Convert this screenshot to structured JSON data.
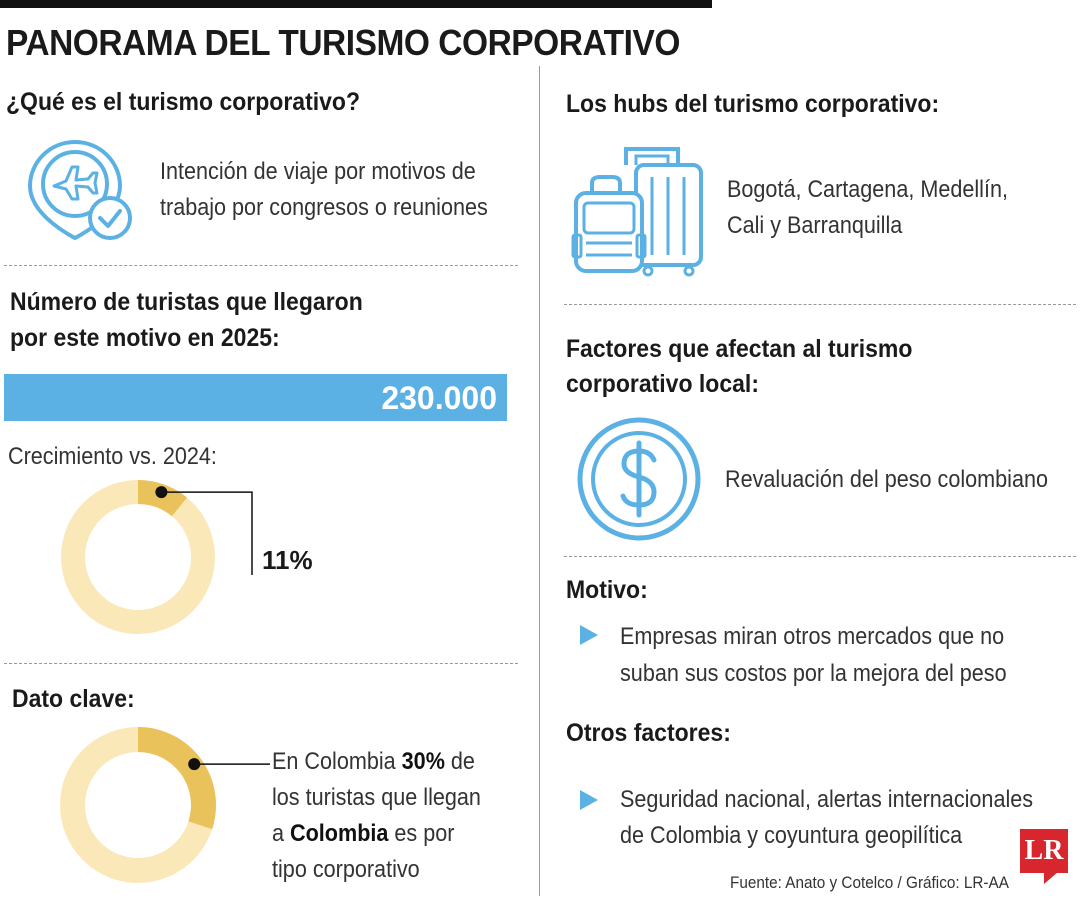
{
  "title": "PANORAMA DEL TURISMO CORPORATIVO",
  "que_es": {
    "heading": "¿Qué es el turismo corporativo?",
    "line1": "Intención de viaje por motivos de",
    "line2": "trabajo por congresos o reuniones",
    "icon": "airplane-location-check-icon"
  },
  "turistas": {
    "heading_line1": "Número de turistas que llegaron",
    "heading_line2": "por este motivo en 2025:",
    "bar_label": "230.000",
    "growth_label": "Crecimiento vs. 2024:"
  },
  "dato_clave": {
    "heading": "Dato clave:",
    "line1_pre": "En Colombia ",
    "line1_bold": "30%",
    "line1_post": " de",
    "line2": "los turistas que llegan",
    "line3_pre": "a ",
    "line3_bold": "Colombia",
    "line3_post": " es por",
    "line4": "tipo corporativo"
  },
  "hubs": {
    "heading": "Los hubs del turismo corporativo:",
    "line1": "Bogotá, Cartagena, Medellín,",
    "line2": "Cali y Barranquilla",
    "icon": "luggage-icon"
  },
  "factores": {
    "heading_line1": "Factores que afectan al turismo",
    "heading_line2": "corporativo local:",
    "text": "Revaluación del peso colombiano",
    "icon": "dollar-coin-icon"
  },
  "motivo": {
    "heading": "Motivo:",
    "line1": "Empresas miran otros mercados que no",
    "line2": "suban sus costos por la mejora del peso"
  },
  "otros": {
    "heading": "Otros factores:",
    "line1": "Seguridad nacional, alertas internacionales",
    "line2": "de Colombia y coyuntura geopilítica"
  },
  "source": "Fuente: Anato y Cotelco / Gráfico: LR-AA",
  "logo": "LR",
  "colors": {
    "accent_blue": "#5cb1e4",
    "donut_track": "#fbe8b9",
    "donut_fill": "#e9c25c",
    "logo_red": "#d7262e"
  },
  "chart_data": [
    {
      "type": "bar",
      "categories": [
        "2025"
      ],
      "values": [
        230000
      ],
      "data_label": "230.000"
    },
    {
      "type": "pie",
      "title": "Crecimiento vs. 2024:",
      "values": [
        11,
        89
      ],
      "data_label": "11%"
    },
    {
      "type": "pie",
      "title": "Dato clave:",
      "values": [
        30,
        70
      ],
      "data_label": "30%"
    }
  ]
}
